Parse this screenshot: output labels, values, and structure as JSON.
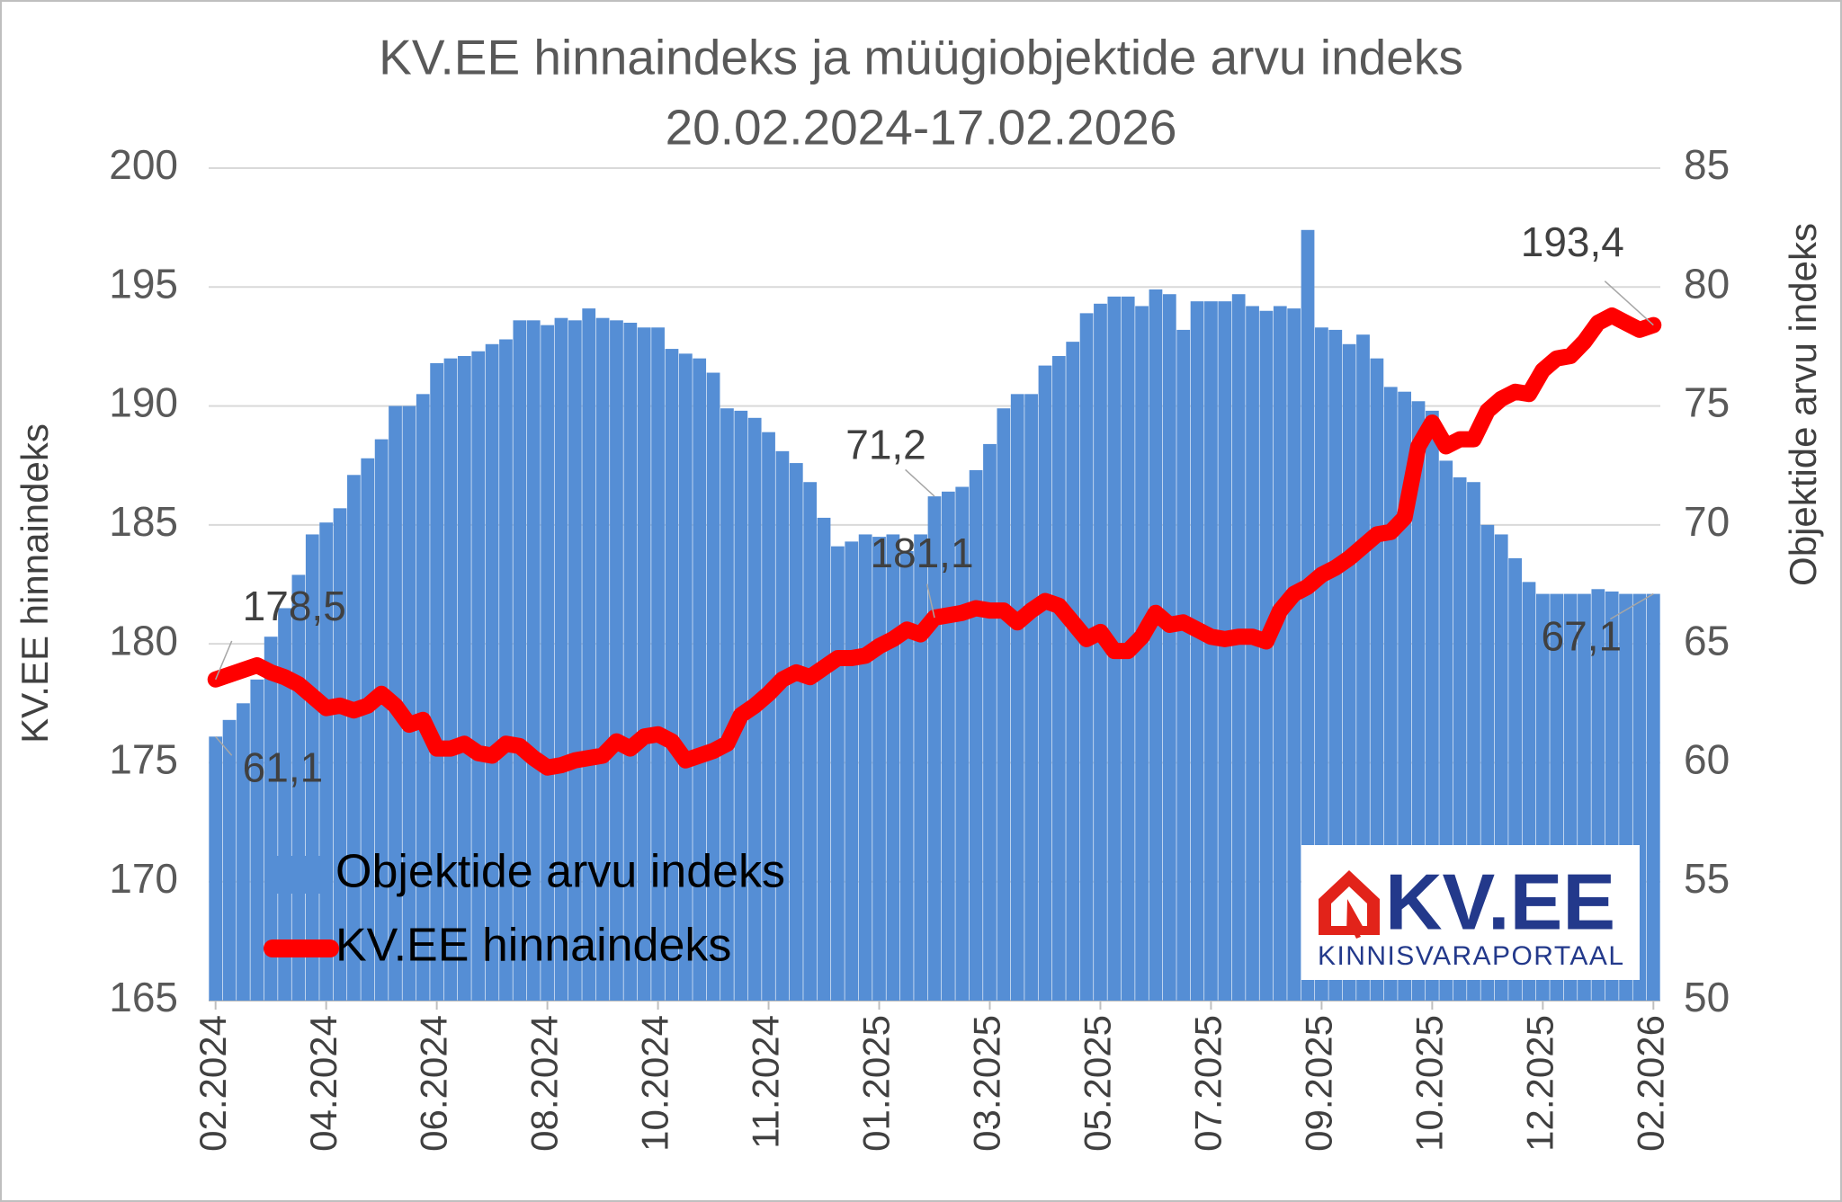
{
  "chart_data": {
    "type": "combo",
    "title": "KV.EE hinnaindeks ja müügiobjektide arvu indeks",
    "subtitle": "20.02.2024-17.02.2026",
    "y_label": "KV.EE hinnaindeks",
    "y2_label": "Objektide arvu indeks",
    "categories": [
      "02.2024",
      null,
      null,
      null,
      null,
      null,
      null,
      null,
      "04.2024",
      null,
      null,
      null,
      null,
      null,
      null,
      null,
      "06.2024",
      null,
      null,
      null,
      null,
      null,
      null,
      null,
      "08.2024",
      null,
      null,
      null,
      null,
      null,
      null,
      null,
      "10.2024",
      null,
      null,
      null,
      null,
      null,
      null,
      null,
      "11.2024",
      null,
      null,
      null,
      null,
      null,
      null,
      null,
      "01.2025",
      null,
      null,
      null,
      null,
      null,
      null,
      null,
      "03.2025",
      null,
      null,
      null,
      null,
      null,
      null,
      null,
      "05.2025",
      null,
      null,
      null,
      null,
      null,
      null,
      null,
      "07.2025",
      null,
      null,
      null,
      null,
      null,
      null,
      null,
      "09.2025",
      null,
      null,
      null,
      null,
      null,
      null,
      null,
      "10.2025",
      null,
      null,
      null,
      null,
      null,
      null,
      null,
      "12.2025",
      null,
      null,
      null,
      null,
      null,
      null,
      null,
      "02.2026"
    ],
    "series": [
      {
        "name": "Objektide arvu indeks",
        "type": "bar",
        "axis": "y2",
        "color": "#558ed5",
        "values": [
          61.1,
          61.8,
          62.5,
          63.5,
          65.3,
          66.5,
          67.9,
          69.6,
          70.1,
          70.7,
          72.1,
          72.8,
          73.6,
          75.0,
          75.0,
          75.5,
          76.8,
          77.0,
          77.1,
          77.3,
          77.6,
          77.8,
          78.6,
          78.6,
          78.4,
          78.7,
          78.6,
          79.1,
          78.7,
          78.6,
          78.5,
          78.3,
          78.3,
          77.4,
          77.2,
          77.0,
          76.4,
          74.9,
          74.8,
          74.5,
          73.9,
          73.1,
          72.6,
          71.8,
          70.3,
          69.1,
          69.3,
          69.6,
          69.5,
          69.6,
          68.9,
          69.6,
          71.2,
          71.4,
          71.6,
          72.3,
          73.4,
          74.9,
          75.5,
          75.5,
          76.7,
          77.1,
          77.7,
          78.9,
          79.3,
          79.6,
          79.6,
          79.2,
          79.9,
          79.7,
          78.2,
          79.4,
          79.4,
          79.4,
          79.7,
          79.2,
          79.0,
          79.2,
          79.1,
          82.4,
          78.3,
          78.2,
          77.6,
          78.0,
          77.0,
          75.8,
          75.6,
          75.2,
          74.8,
          72.7,
          72.0,
          71.8,
          70.0,
          69.6,
          68.6,
          67.6,
          67.1,
          67.1,
          67.1,
          67.1,
          67.3,
          67.2,
          67.1,
          67.1,
          67.1
        ],
        "value_labels": [
          "61,1",
          null,
          null,
          null,
          null,
          null,
          null,
          null,
          null,
          null,
          null,
          null,
          null,
          null,
          null,
          null,
          null,
          null,
          null,
          null,
          null,
          null,
          null,
          null,
          null,
          null,
          null,
          null,
          null,
          null,
          null,
          null,
          null,
          null,
          null,
          null,
          null,
          null,
          null,
          null,
          null,
          null,
          null,
          null,
          null,
          null,
          null,
          null,
          null,
          null,
          null,
          null,
          "71,2",
          null,
          null,
          null,
          null,
          null,
          null,
          null,
          null,
          null,
          null,
          null,
          null,
          null,
          null,
          null,
          null,
          null,
          null,
          null,
          null,
          null,
          null,
          null,
          null,
          null,
          null,
          null,
          null,
          null,
          null,
          null,
          null,
          null,
          null,
          null,
          null,
          null,
          null,
          null,
          null,
          null,
          null,
          null,
          null,
          null,
          null,
          null,
          null,
          null,
          null,
          null,
          "67,1"
        ]
      },
      {
        "name": "KV.EE hinnaindeks",
        "type": "line",
        "axis": "y",
        "color": "#ff0000",
        "values": [
          178.5,
          178.7,
          178.9,
          179.1,
          178.8,
          178.6,
          178.3,
          177.8,
          177.3,
          177.4,
          177.2,
          177.4,
          177.9,
          177.4,
          176.6,
          176.8,
          175.6,
          175.6,
          175.8,
          175.4,
          175.3,
          175.8,
          175.7,
          175.2,
          174.8,
          174.9,
          175.1,
          175.2,
          175.3,
          175.9,
          175.6,
          176.1,
          176.2,
          175.9,
          175.1,
          175.3,
          175.5,
          175.8,
          177.0,
          177.4,
          177.9,
          178.5,
          178.8,
          178.6,
          179.0,
          179.4,
          179.4,
          179.5,
          179.9,
          180.2,
          180.6,
          180.4,
          181.1,
          181.2,
          181.3,
          181.5,
          181.4,
          181.4,
          180.9,
          181.4,
          181.8,
          181.6,
          180.9,
          180.2,
          180.5,
          179.7,
          179.7,
          180.3,
          181.3,
          180.8,
          180.9,
          180.6,
          180.3,
          180.2,
          180.3,
          180.3,
          180.1,
          181.4,
          182.1,
          182.4,
          182.9,
          183.2,
          183.6,
          184.1,
          184.6,
          184.7,
          185.3,
          188.3,
          189.3,
          188.3,
          188.6,
          188.6,
          189.8,
          190.3,
          190.6,
          190.5,
          191.5,
          192.0,
          192.1,
          192.7,
          193.5,
          193.8,
          193.5,
          193.2,
          193.4
        ],
        "value_labels": [
          "178,5",
          null,
          null,
          null,
          null,
          null,
          null,
          null,
          null,
          null,
          null,
          null,
          null,
          null,
          null,
          null,
          null,
          null,
          null,
          null,
          null,
          null,
          null,
          null,
          null,
          null,
          null,
          null,
          null,
          null,
          null,
          null,
          null,
          null,
          null,
          null,
          null,
          null,
          null,
          null,
          null,
          null,
          null,
          null,
          null,
          null,
          null,
          null,
          null,
          null,
          null,
          null,
          "181,1",
          null,
          null,
          null,
          null,
          null,
          null,
          null,
          null,
          null,
          null,
          null,
          null,
          null,
          null,
          null,
          null,
          null,
          null,
          null,
          null,
          null,
          null,
          null,
          null,
          null,
          null,
          null,
          null,
          null,
          null,
          null,
          null,
          null,
          null,
          null,
          null,
          null,
          null,
          null,
          null,
          null,
          null,
          null,
          null,
          null,
          null,
          null,
          null,
          null,
          null,
          null,
          "193,4"
        ]
      }
    ],
    "ylim": [
      165,
      200
    ],
    "yticks": [
      165,
      170,
      175,
      180,
      185,
      190,
      195,
      200
    ],
    "y2lim": [
      50,
      85
    ],
    "y2ticks": [
      50,
      55,
      60,
      65,
      70,
      75,
      80,
      85
    ],
    "grid": true,
    "legend": "lower left"
  },
  "logo": {
    "text": "KV.EE",
    "tagline": "KINNISVARAPORTAAL"
  }
}
